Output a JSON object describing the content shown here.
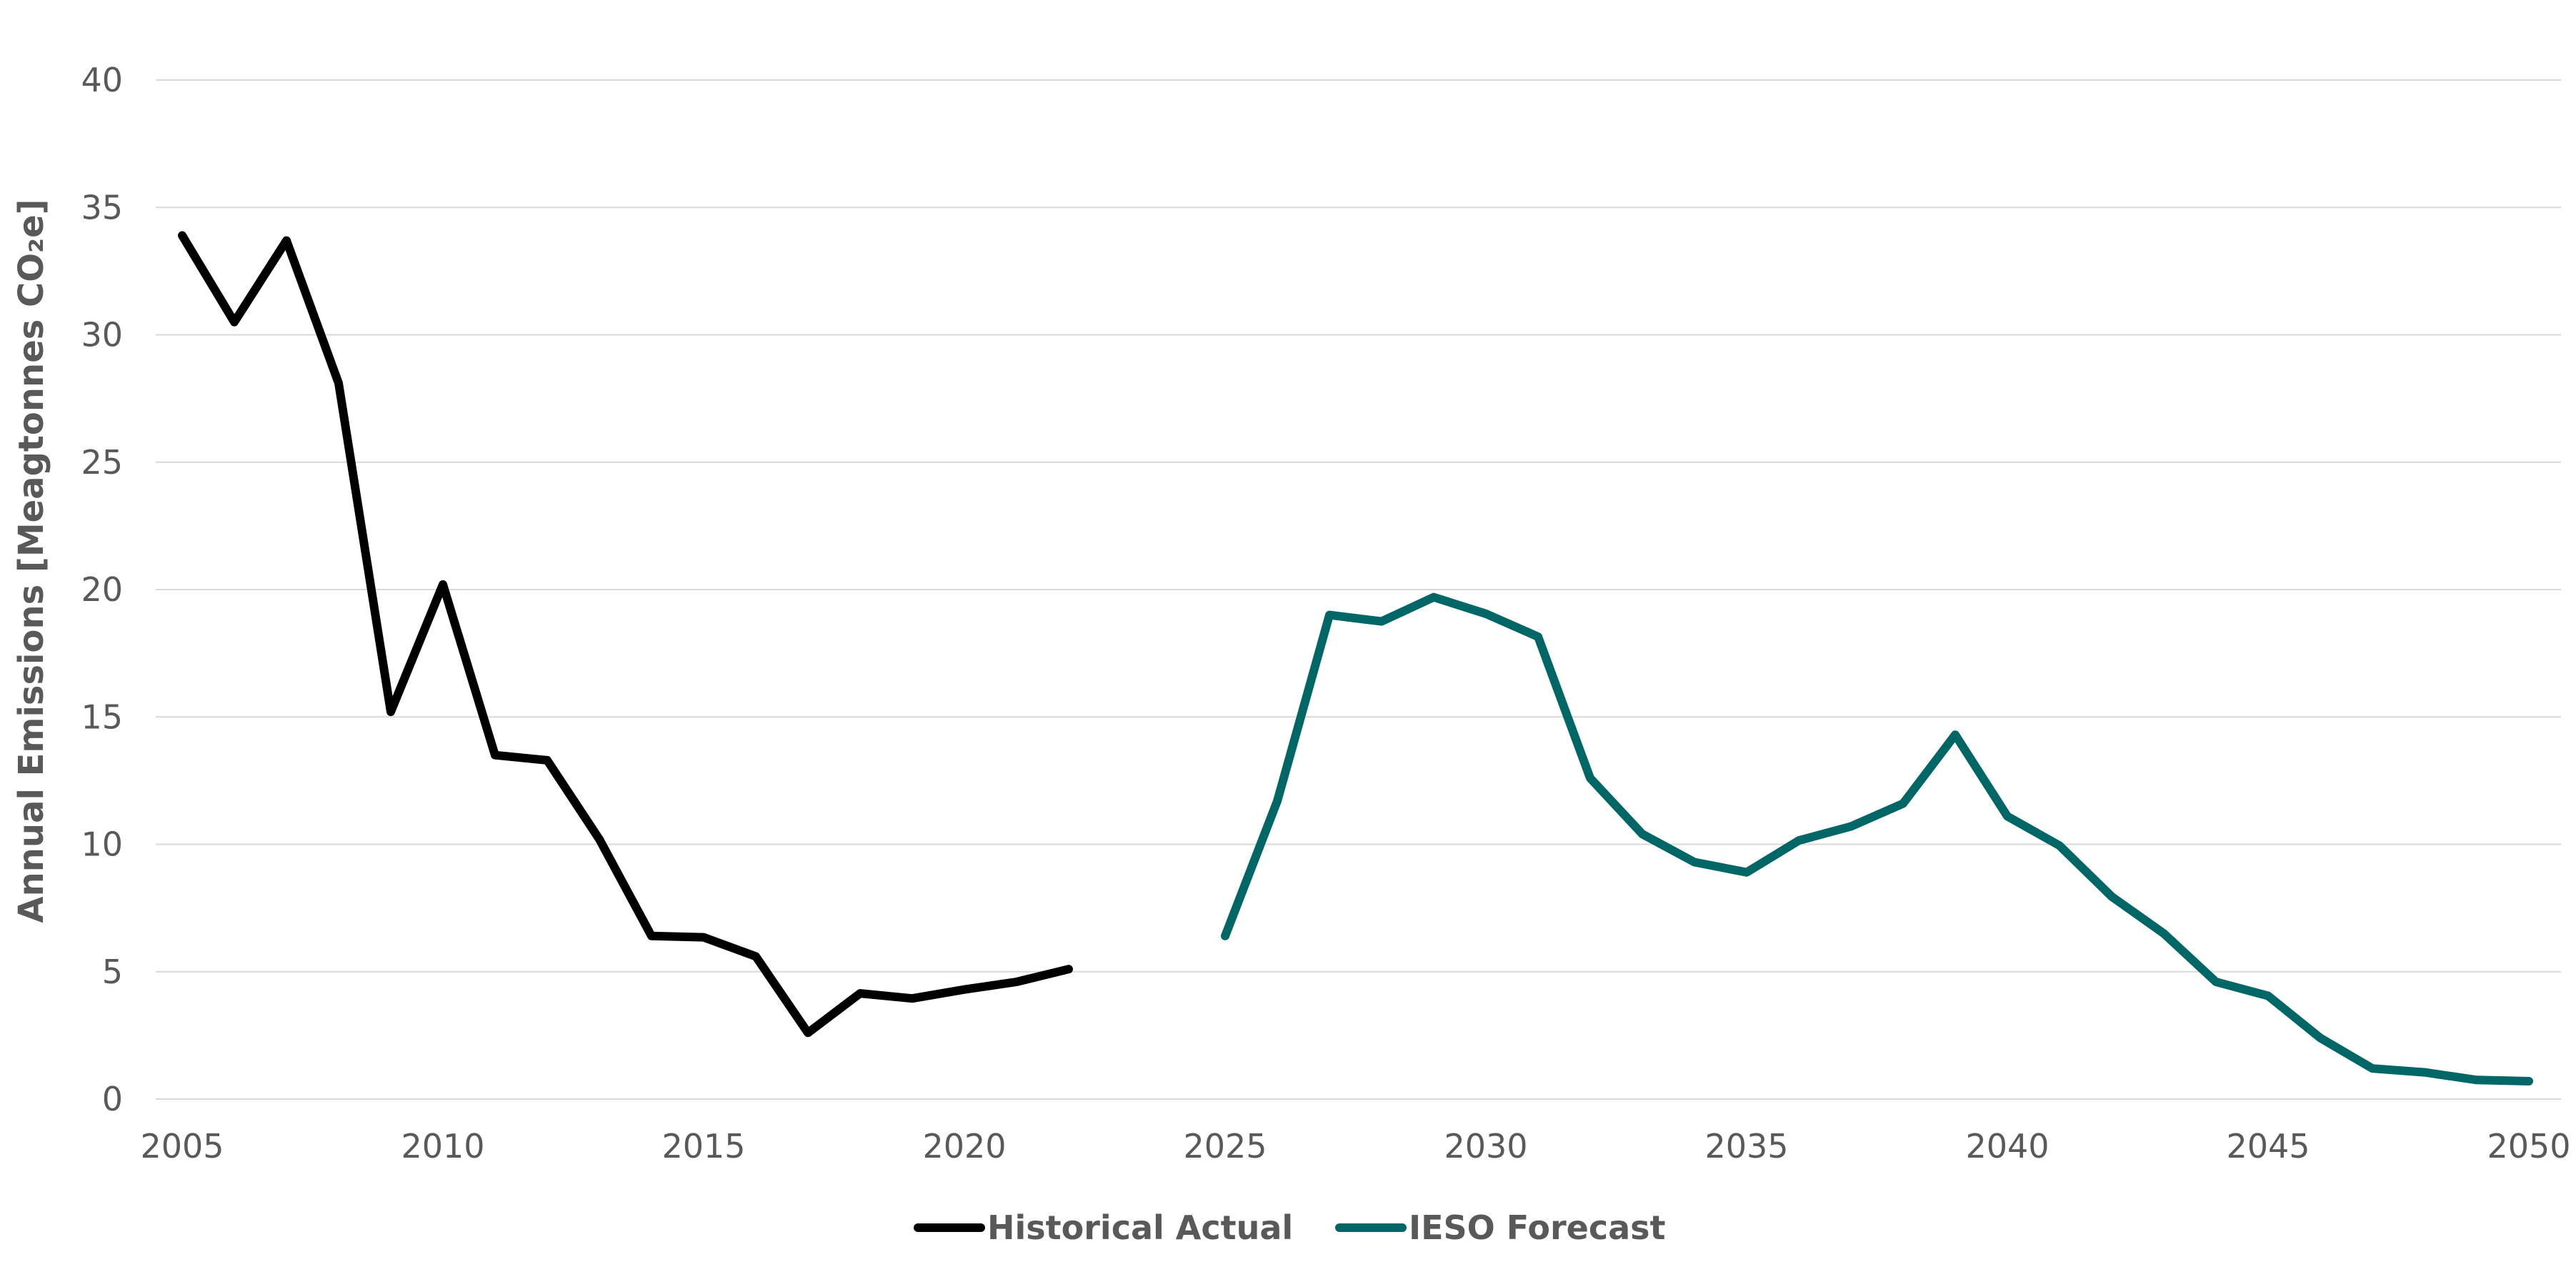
{
  "chart_data": {
    "type": "line",
    "title": "",
    "xlabel": "",
    "ylabel": "Annual Emissions [Meagtonnes CO₂e]",
    "xlim": [
      2005,
      2050
    ],
    "ylim": [
      0,
      40
    ],
    "x_ticks": [
      "2005",
      "2010",
      "2015",
      "2020",
      "2025",
      "2030",
      "2035",
      "2040",
      "2045",
      "2050"
    ],
    "y_ticks": [
      "0",
      "5",
      "10",
      "15",
      "20",
      "25",
      "30",
      "35",
      "40"
    ],
    "grid": true,
    "legend_position": "bottom-center",
    "series": [
      {
        "name": "Historical Actual",
        "color": "#000000",
        "x": [
          2005,
          2006,
          2007,
          2008,
          2009,
          2010,
          2011,
          2012,
          2013,
          2014,
          2015,
          2016,
          2017,
          2018,
          2019,
          2020,
          2021,
          2022
        ],
        "values": [
          33.9,
          30.5,
          33.7,
          28.1,
          15.2,
          20.2,
          13.5,
          13.3,
          10.2,
          6.4,
          6.35,
          5.6,
          2.6,
          4.15,
          3.95,
          4.3,
          4.6,
          5.1
        ]
      },
      {
        "name": "IESO Forecast",
        "color": "#006666",
        "x": [
          2025,
          2026,
          2027,
          2028,
          2029,
          2030,
          2031,
          2032,
          2033,
          2034,
          2035,
          2036,
          2037,
          2038,
          2039,
          2040,
          2041,
          2042,
          2043,
          2044,
          2045,
          2046,
          2047,
          2048,
          2049,
          2050
        ],
        "values": [
          6.4,
          11.7,
          19.0,
          18.75,
          19.7,
          19.05,
          18.15,
          12.6,
          10.4,
          9.3,
          8.9,
          10.15,
          10.7,
          11.6,
          14.3,
          11.1,
          9.95,
          7.95,
          6.5,
          4.6,
          4.05,
          2.4,
          1.2,
          1.05,
          0.75,
          0.7
        ]
      }
    ]
  }
}
